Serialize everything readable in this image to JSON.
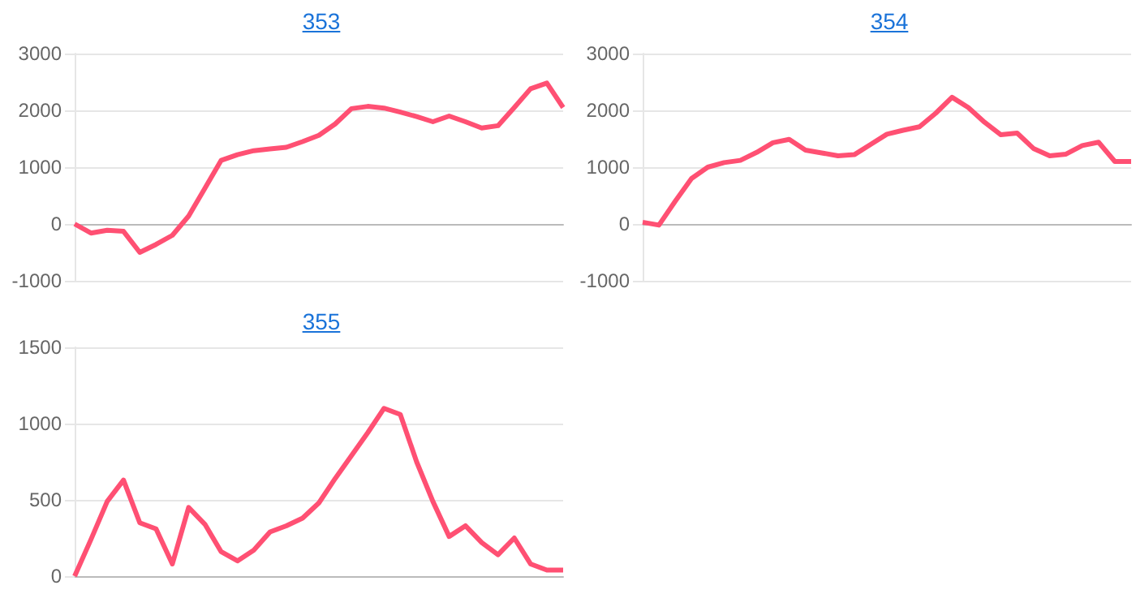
{
  "chart_data": [
    {
      "type": "line",
      "title": "353",
      "categories": [
        null,
        null,
        null,
        null,
        null,
        null,
        null,
        null,
        null,
        null,
        null,
        null,
        null,
        null,
        null,
        null,
        null,
        null,
        null,
        null,
        null,
        null,
        null,
        null,
        null,
        null,
        null,
        null,
        null,
        null,
        null
      ],
      "series": [
        {
          "color": "#ff5073",
          "values": [
            0,
            -160,
            -110,
            -130,
            -500,
            -360,
            -200,
            140,
            630,
            1120,
            1220,
            1290,
            1320,
            1350,
            1450,
            1560,
            1760,
            2030,
            2070,
            2040,
            1970,
            1890,
            1800,
            1900,
            1800,
            1690,
            1730,
            2050,
            2380,
            2480,
            2050
          ]
        }
      ],
      "ylim": [
        -1000,
        3000
      ],
      "yticks": [
        -1000,
        0,
        1000,
        2000,
        3000
      ],
      "grid": "y",
      "tick_labels": "y",
      "marker": "none"
    },
    {
      "type": "line",
      "title": "354",
      "categories": [
        null,
        null,
        null,
        null,
        null,
        null,
        null,
        null,
        null,
        null,
        null,
        null,
        null,
        null,
        null,
        null,
        null,
        null,
        null,
        null,
        null,
        null,
        null,
        null,
        null,
        null,
        null,
        null,
        null,
        null,
        null
      ],
      "series": [
        {
          "color": "#ff5073",
          "values": [
            30,
            -20,
            400,
            800,
            1000,
            1080,
            1120,
            1260,
            1430,
            1490,
            1300,
            1250,
            1200,
            1220,
            1400,
            1580,
            1650,
            1710,
            1950,
            2230,
            2050,
            1790,
            1570,
            1600,
            1330,
            1200,
            1230,
            1380,
            1440,
            1100,
            1100
          ]
        }
      ],
      "ylim": [
        -1000,
        3000
      ],
      "yticks": [
        -1000,
        0,
        1000,
        2000,
        3000
      ],
      "grid": "y",
      "tick_labels": "y",
      "marker": "none"
    },
    {
      "type": "line",
      "title": "355",
      "categories": [
        null,
        null,
        null,
        null,
        null,
        null,
        null,
        null,
        null,
        null,
        null,
        null,
        null,
        null,
        null,
        null,
        null,
        null,
        null,
        null,
        null,
        null,
        null,
        null,
        null,
        null,
        null,
        null,
        null,
        null,
        null
      ],
      "series": [
        {
          "color": "#ff5073",
          "values": [
            0,
            240,
            490,
            630,
            350,
            310,
            80,
            450,
            340,
            160,
            100,
            170,
            290,
            330,
            380,
            480,
            640,
            790,
            940,
            1100,
            1060,
            750,
            490,
            260,
            330,
            220,
            140,
            250,
            80,
            40,
            40
          ]
        }
      ],
      "ylim": [
        0,
        1500
      ],
      "yticks": [
        0,
        500,
        1000,
        1500
      ],
      "grid": "y",
      "tick_labels": "y",
      "marker": "none"
    }
  ]
}
